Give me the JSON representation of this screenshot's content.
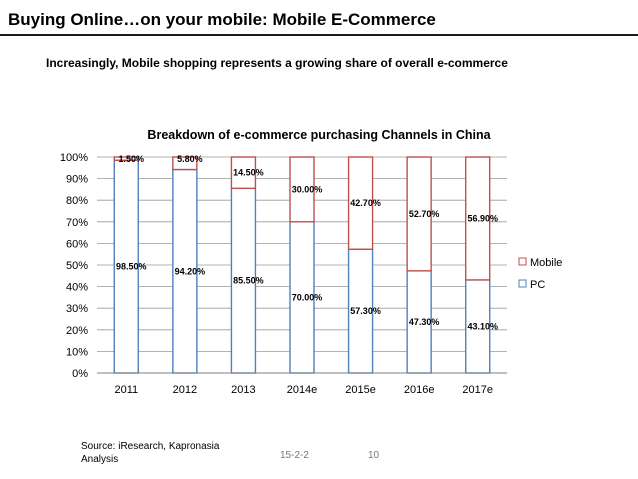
{
  "header": {
    "title": "Buying Online…on your mobile: Mobile E-Commerce",
    "subtitle": "Increasingly, Mobile shopping represents a growing share of overall e-commerce"
  },
  "footer": {
    "source": "Source: iResearch, Kapronasia Analysis",
    "date": "15-2-2",
    "page": "10"
  },
  "chart_data": {
    "type": "bar",
    "stacked": true,
    "title": "Breakdown of e-commerce purchasing Channels in China",
    "categories": [
      "2011",
      "2012",
      "2013",
      "2014e",
      "2015e",
      "2016e",
      "2017e"
    ],
    "series": [
      {
        "name": "PC",
        "values": [
          98.5,
          94.2,
          85.5,
          70.0,
          57.3,
          47.3,
          43.1
        ],
        "labels": [
          "98.50%",
          "94.20%",
          "85.50%",
          "70.00%",
          "57.30%",
          "47.30%",
          "43.10%"
        ],
        "color": "#4f81bd"
      },
      {
        "name": "Mobile",
        "values": [
          1.5,
          5.8,
          14.5,
          30.0,
          42.7,
          52.7,
          56.9
        ],
        "labels": [
          "1.50%",
          "5.80%",
          "14.50%",
          "30.00%",
          "42.70%",
          "52.70%",
          "56.90%"
        ],
        "color": "#c0504d"
      }
    ],
    "ylim": [
      0,
      100
    ],
    "yticks": [
      "0%",
      "10%",
      "20%",
      "30%",
      "40%",
      "50%",
      "60%",
      "70%",
      "80%",
      "90%",
      "100%"
    ],
    "grid": true,
    "legend": "right"
  }
}
